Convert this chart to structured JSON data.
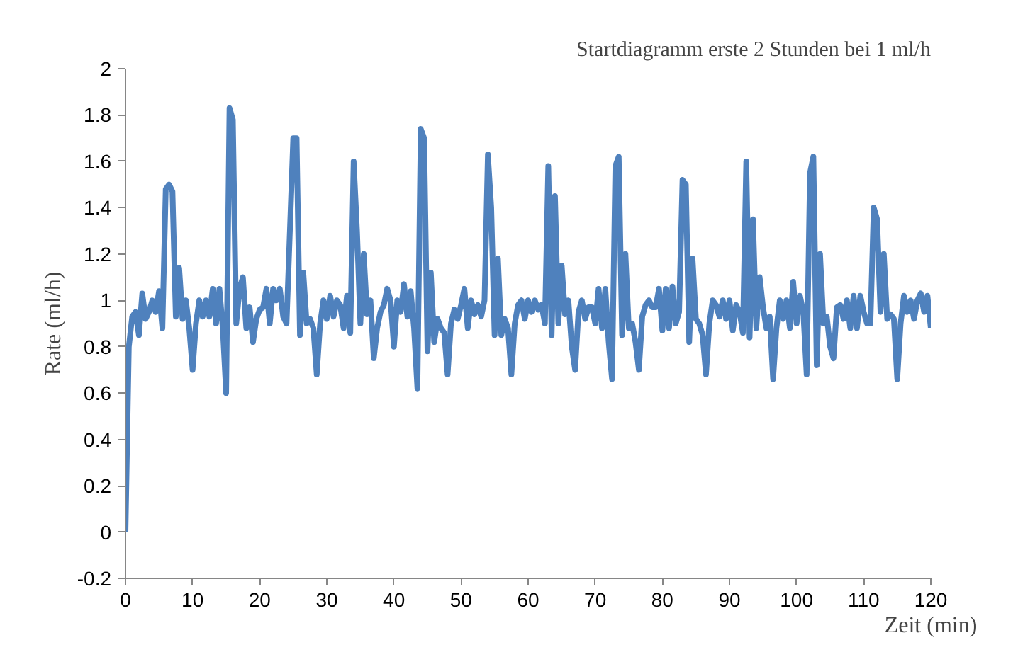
{
  "chart_data": {
    "type": "line",
    "title": "Startdiagramm erste 2 Stunden bei 1 ml/h",
    "xlabel": "Zeit (min)",
    "ylabel": "Rate (ml/h)",
    "x": [
      0,
      0.5,
      1,
      1.5,
      2,
      2.5,
      3,
      3.5,
      4,
      4.5,
      5,
      5.5,
      6,
      6.5,
      7,
      7.5,
      8,
      8.5,
      9,
      9.5,
      10,
      10.5,
      11,
      11.5,
      12,
      12.5,
      13,
      13.5,
      14,
      14.5,
      15,
      15.5,
      16,
      16.5,
      17,
      17.5,
      18,
      18.5,
      19,
      19.5,
      20,
      20.5,
      21,
      21.5,
      22,
      22.5,
      23,
      23.5,
      24,
      25,
      25.5,
      26,
      26.5,
      27,
      27.5,
      28,
      28.5,
      29,
      29.5,
      30,
      30.5,
      31,
      31.5,
      32,
      32.5,
      33,
      33.5,
      34,
      34.5,
      35,
      35.5,
      36,
      36.5,
      37,
      37.5,
      38,
      38.5,
      39,
      39.5,
      40,
      40.5,
      41,
      41.5,
      42,
      42.5,
      43,
      43.5,
      44,
      44.5,
      45,
      45.5,
      46,
      46.5,
      47,
      47.5,
      48,
      48.5,
      49,
      49.5,
      50,
      50.5,
      51,
      51.5,
      52,
      52.5,
      53,
      53.5,
      54,
      54.5,
      55,
      55.5,
      56,
      56.5,
      57,
      57.5,
      58,
      58.5,
      59,
      59.5,
      60,
      60.5,
      61,
      61.5,
      62,
      62.5,
      63,
      63.5,
      64,
      64.5,
      65,
      65.5,
      66,
      66.5,
      67,
      67.5,
      68,
      68.5,
      69,
      69.5,
      70,
      70.5,
      71,
      71.5,
      72,
      72.5,
      73,
      73.5,
      74,
      74.5,
      75,
      75.5,
      76,
      76.5,
      77,
      77.5,
      78,
      78.5,
      79,
      79.5,
      80,
      80.5,
      81,
      81.5,
      82,
      82.5,
      83,
      83.5,
      84,
      84.5,
      85,
      85.5,
      86,
      86.5,
      87,
      87.5,
      88,
      88.5,
      89,
      89.5,
      90,
      90.5,
      91,
      91.5,
      92,
      92.5,
      93,
      93.5,
      94,
      94.5,
      95,
      95.5,
      96,
      96.5,
      97,
      97.5,
      98,
      98.5,
      99,
      99.5,
      100,
      100.5,
      101,
      101.5,
      102,
      102.5,
      103,
      103.5,
      104,
      104.5,
      105,
      105.5,
      106,
      106.5,
      107,
      107.5,
      108,
      108.5,
      109,
      109.5,
      110,
      110.5,
      111,
      111.5,
      112,
      112.5,
      113,
      113.5,
      114,
      114.5,
      115,
      115.5,
      116,
      116.5,
      117,
      117.5,
      118,
      118.5,
      119,
      119.5,
      120
    ],
    "series": [
      {
        "color": "#4f81bd",
        "values": [
          0,
          0.8,
          0.93,
          0.95,
          0.85,
          1.03,
          0.92,
          0.95,
          1.0,
          0.95,
          1.04,
          0.88,
          1.48,
          1.5,
          1.47,
          0.93,
          1.14,
          0.92,
          1.0,
          0.88,
          0.7,
          0.9,
          1.0,
          0.93,
          1.0,
          0.93,
          1.05,
          0.9,
          1.05,
          0.88,
          0.6,
          1.83,
          1.78,
          0.9,
          1.05,
          1.1,
          0.88,
          0.97,
          0.82,
          0.92,
          0.96,
          0.97,
          1.05,
          0.9,
          1.05,
          1.0,
          1.05,
          0.93,
          0.9,
          1.7,
          1.7,
          0.85,
          1.12,
          0.9,
          0.92,
          0.88,
          0.68,
          0.9,
          1.0,
          0.92,
          1.02,
          0.93,
          1.0,
          0.98,
          0.88,
          1.02,
          0.86,
          1.6,
          1.3,
          0.9,
          1.2,
          0.94,
          1.0,
          0.75,
          0.88,
          0.95,
          0.98,
          1.05,
          1.0,
          0.8,
          1.0,
          0.95,
          1.07,
          0.93,
          1.04,
          0.88,
          0.62,
          1.74,
          1.7,
          0.78,
          1.12,
          0.82,
          0.92,
          0.88,
          0.86,
          0.68,
          0.9,
          0.96,
          0.92,
          0.98,
          1.05,
          0.88,
          1.0,
          0.94,
          0.98,
          0.93,
          1.0,
          1.63,
          1.4,
          0.85,
          1.18,
          0.85,
          0.92,
          0.88,
          0.68,
          0.9,
          0.98,
          1.0,
          0.92,
          1.0,
          0.95,
          1.0,
          0.96,
          0.98,
          0.9,
          1.58,
          0.85,
          1.45,
          0.9,
          1.15,
          0.94,
          1.0,
          0.8,
          0.7,
          0.95,
          1.0,
          0.92,
          0.97,
          0.97,
          0.9,
          1.05,
          0.88,
          1.05,
          0.82,
          0.66,
          1.58,
          1.62,
          0.85,
          1.2,
          0.88,
          0.9,
          0.82,
          0.7,
          0.93,
          0.98,
          1.0,
          0.97,
          0.97,
          1.05,
          0.87,
          1.05,
          0.88,
          1.06,
          0.9,
          0.95,
          1.52,
          1.5,
          0.82,
          1.18,
          0.92,
          0.9,
          0.85,
          0.68,
          0.9,
          1.0,
          0.98,
          0.93,
          1.0,
          0.92,
          1.0,
          0.87,
          0.98,
          0.95,
          0.86,
          1.6,
          0.84,
          1.35,
          0.88,
          1.1,
          0.97,
          0.88,
          0.93,
          0.66,
          0.88,
          1.0,
          0.92,
          1.0,
          0.88,
          1.08,
          0.9,
          1.02,
          0.95,
          0.68,
          1.55,
          1.62,
          0.72,
          1.2,
          0.9,
          0.93,
          0.8,
          0.75,
          0.97,
          0.98,
          0.92,
          1.0,
          0.88,
          1.02,
          0.88,
          1.02,
          0.95,
          0.9,
          0.9,
          1.4,
          1.35,
          0.95,
          1.2,
          0.92,
          0.94,
          0.92,
          0.66,
          0.9,
          1.02,
          0.95,
          1.0,
          0.92,
          1.0,
          1.03,
          0.95,
          1.02,
          0.88
        ]
      }
    ],
    "xlim": [
      0,
      120
    ],
    "xticks": [
      0,
      10,
      20,
      30,
      40,
      50,
      60,
      70,
      80,
      90,
      100,
      110,
      120
    ],
    "ylim": [
      -0.2,
      2
    ],
    "yticks": [
      -0.2,
      0,
      0.2,
      0.4,
      0.6,
      0.8,
      1,
      1.2,
      1.4,
      1.6,
      1.8,
      2
    ],
    "grid": false,
    "marker": "none",
    "line_style": "solid"
  }
}
